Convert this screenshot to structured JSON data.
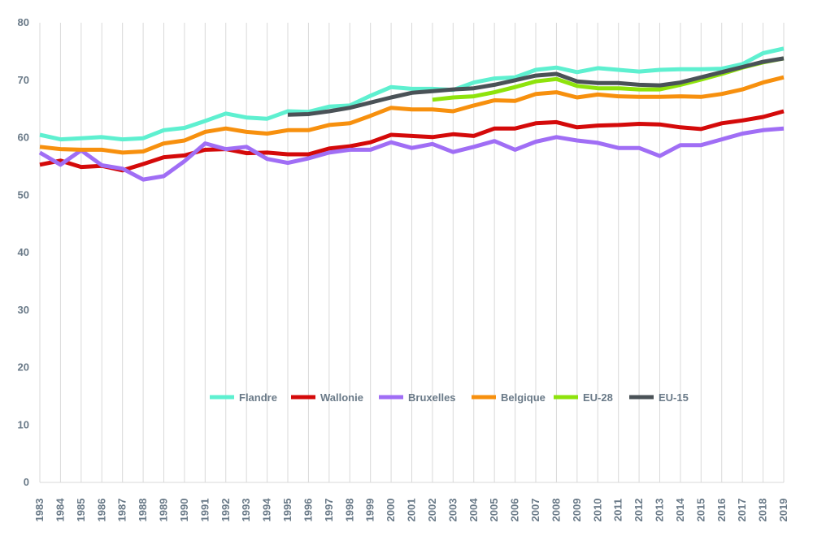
{
  "chart_data": {
    "type": "line",
    "title": "",
    "xlabel": "",
    "ylabel": "",
    "ylim": [
      0,
      80
    ],
    "yticks": [
      0,
      10,
      20,
      30,
      40,
      50,
      60,
      70,
      80
    ],
    "grid": "vertical",
    "legend_position": "inside-center",
    "categories": [
      "1983",
      "1984",
      "1985",
      "1986",
      "1987",
      "1988",
      "1989",
      "1990",
      "1991",
      "1992",
      "1993",
      "1994",
      "1995",
      "1996",
      "1997",
      "1998",
      "1999",
      "2000",
      "2001",
      "2002",
      "2003",
      "2004",
      "2005",
      "2006",
      "2007",
      "2008",
      "2009",
      "2010",
      "2011",
      "2012",
      "2013",
      "2014",
      "2015",
      "2016",
      "2017",
      "2018",
      "2019"
    ],
    "series": [
      {
        "name": "Flandre",
        "color": "#5ef0d0",
        "values": [
          60.5,
          59.7,
          59.9,
          60.1,
          59.7,
          59.9,
          61.3,
          61.7,
          62.9,
          64.2,
          63.5,
          63.3,
          64.6,
          64.5,
          65.4,
          65.6,
          67.3,
          68.8,
          68.5,
          68.5,
          68.3,
          69.6,
          70.3,
          70.5,
          71.8,
          72.2,
          71.4,
          72.1,
          71.8,
          71.5,
          71.8,
          71.9,
          71.9,
          72.0,
          72.8,
          74.7,
          75.5
        ]
      },
      {
        "name": "Wallonie",
        "color": "#d40a0a",
        "values": [
          55.3,
          56.0,
          54.9,
          55.1,
          54.3,
          55.4,
          56.6,
          56.9,
          57.9,
          58.0,
          57.3,
          57.4,
          57.1,
          57.1,
          58.1,
          58.5,
          59.2,
          60.5,
          60.3,
          60.1,
          60.6,
          60.3,
          61.6,
          61.6,
          62.5,
          62.7,
          61.8,
          62.1,
          62.2,
          62.4,
          62.3,
          61.8,
          61.5,
          62.5,
          63.0,
          63.6,
          64.6
        ]
      },
      {
        "name": "Bruxelles",
        "color": "#a06ef5",
        "values": [
          57.4,
          55.3,
          57.8,
          55.2,
          54.6,
          52.7,
          53.3,
          55.9,
          59.0,
          58.0,
          58.4,
          56.3,
          55.6,
          56.4,
          57.4,
          57.9,
          57.9,
          59.2,
          58.2,
          58.9,
          57.5,
          58.4,
          59.4,
          57.9,
          59.3,
          60.1,
          59.5,
          59.1,
          58.2,
          58.2,
          56.8,
          58.7,
          58.7,
          59.7,
          60.7,
          61.3,
          61.6
        ]
      },
      {
        "name": "Belgique",
        "color": "#f7900e",
        "values": [
          58.4,
          58.0,
          57.9,
          57.9,
          57.4,
          57.6,
          59.0,
          59.5,
          61.0,
          61.6,
          61.0,
          60.7,
          61.3,
          61.3,
          62.2,
          62.5,
          63.8,
          65.2,
          64.9,
          64.9,
          64.6,
          65.6,
          66.5,
          66.4,
          67.6,
          67.9,
          67.0,
          67.5,
          67.2,
          67.1,
          67.1,
          67.2,
          67.1,
          67.6,
          68.4,
          69.6,
          70.5
        ]
      },
      {
        "name": "EU-28",
        "color": "#8ee30c",
        "values": [
          null,
          null,
          null,
          null,
          null,
          null,
          null,
          null,
          null,
          null,
          null,
          null,
          null,
          null,
          null,
          null,
          null,
          null,
          null,
          66.6,
          67.0,
          67.2,
          67.9,
          68.8,
          69.8,
          70.2,
          69.0,
          68.6,
          68.6,
          68.4,
          68.4,
          69.2,
          70.1,
          71.1,
          72.2,
          73.1,
          73.8
        ]
      },
      {
        "name": "EU-15",
        "color": "#4a5257",
        "values": [
          null,
          null,
          null,
          null,
          null,
          null,
          null,
          null,
          null,
          null,
          null,
          null,
          64.0,
          64.1,
          64.6,
          65.2,
          66.1,
          67.0,
          67.8,
          68.1,
          68.4,
          68.6,
          69.2,
          70.0,
          70.8,
          71.1,
          69.8,
          69.5,
          69.5,
          69.2,
          69.1,
          69.6,
          70.5,
          71.4,
          72.3,
          73.2,
          73.8
        ]
      }
    ]
  }
}
